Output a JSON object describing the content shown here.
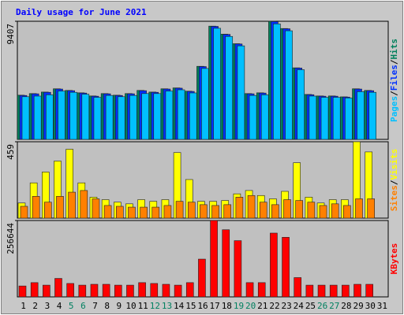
{
  "chart_data": [
    {
      "type": "bar",
      "title": "Daily usage for June 2021",
      "categories": [
        "1",
        "2",
        "3",
        "4",
        "5",
        "6",
        "7",
        "8",
        "9",
        "10",
        "11",
        "12",
        "13",
        "14",
        "15",
        "16",
        "17",
        "18",
        "19",
        "20",
        "21",
        "22",
        "23",
        "24",
        "25",
        "26",
        "27",
        "28",
        "29",
        "30",
        "31"
      ],
      "category_colors": [
        "#000000",
        "#000000",
        "#000000",
        "#000000",
        "#008060",
        "#008060",
        "#000000",
        "#000000",
        "#000000",
        "#000000",
        "#000000",
        "#008060",
        "#008060",
        "#000000",
        "#000000",
        "#000000",
        "#000000",
        "#000000",
        "#008060",
        "#008060",
        "#000000",
        "#000000",
        "#000000",
        "#000000",
        "#000000",
        "#008060",
        "#008060",
        "#000000",
        "#000000",
        "#000000",
        "#000000"
      ],
      "legend_separator": "/",
      "ylim": [
        0,
        9407
      ],
      "yticks": [
        9407
      ],
      "series": [
        {
          "name": "Hits",
          "color": "#00805c",
          "values": [
            3520,
            3650,
            3770,
            4030,
            3900,
            3710,
            3460,
            3650,
            3520,
            3650,
            3900,
            3770,
            4030,
            4100,
            3840,
            5820,
            9020,
            8380,
            7620,
            3650,
            3710,
            9407,
            8830,
            5700,
            3580,
            3460,
            3460,
            3390,
            4030,
            3900,
            null
          ]
        },
        {
          "name": "Files",
          "color": "#0030ff",
          "values": [
            3500,
            3630,
            3750,
            4010,
            3880,
            3690,
            3440,
            3630,
            3500,
            3630,
            3880,
            3750,
            4010,
            4080,
            3820,
            5800,
            9000,
            8360,
            7600,
            3630,
            3690,
            9380,
            8810,
            5680,
            3560,
            3440,
            3440,
            3370,
            4010,
            3880,
            null
          ]
        },
        {
          "name": "Pages",
          "color": "#00c0ff",
          "values": [
            3400,
            3450,
            3550,
            3850,
            3750,
            3600,
            3350,
            3500,
            3400,
            3500,
            3650,
            3650,
            3850,
            3950,
            3700,
            5650,
            8850,
            8200,
            7450,
            3500,
            3550,
            9200,
            8650,
            5550,
            3450,
            3350,
            3350,
            3300,
            3800,
            3750,
            null
          ]
        }
      ]
    },
    {
      "type": "bar",
      "ylim": [
        0,
        459
      ],
      "yticks": [
        459
      ],
      "series": [
        {
          "name": "Visits",
          "color": "#ffff00",
          "values": [
            91,
            212,
            277,
            343,
            414,
            212,
            126,
            111,
            96,
            86,
            111,
            101,
            111,
            394,
            232,
            101,
            101,
            106,
            146,
            166,
            136,
            116,
            161,
            333,
            126,
            91,
            111,
            111,
            459,
            398,
            null
          ]
        },
        {
          "name": "Sites",
          "color": "#ff8000",
          "values": [
            71,
            131,
            96,
            131,
            156,
            166,
            116,
            76,
            71,
            66,
            66,
            66,
            76,
            101,
            96,
            81,
            76,
            81,
            126,
            136,
            96,
            81,
            111,
            106,
            96,
            76,
            86,
            76,
            116,
            116,
            null
          ]
        }
      ]
    },
    {
      "type": "bar",
      "ylim": [
        0,
        256644
      ],
      "yticks": [
        256644
      ],
      "series": [
        {
          "name": "KBytes",
          "color": "#ff0000",
          "values": [
            36660,
            47940,
            39480,
            62040,
            45120,
            39480,
            42300,
            42300,
            39480,
            39480,
            47940,
            45120,
            42300,
            39480,
            47940,
            126900,
            256644,
            225600,
            188960,
            47940,
            47940,
            214330,
            200230,
            64860,
            39480,
            39480,
            39480,
            39480,
            42300,
            42300,
            null
          ]
        }
      ]
    }
  ]
}
